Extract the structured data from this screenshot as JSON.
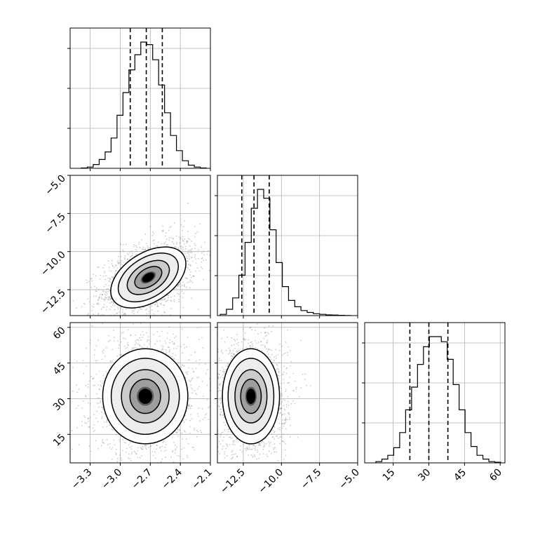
{
  "chart_data": {
    "type": "corner",
    "description_free": true,
    "grid": true,
    "variables": [
      {
        "range": [
          -3.5,
          -2.1
        ],
        "ticks": [
          -3.3,
          -3.0,
          -2.7,
          -2.4,
          -2.1
        ],
        "tick_labels": [
          "−3.3",
          "−3.0",
          "−2.7",
          "−2.4",
          "−2.1"
        ],
        "quantiles": [
          -2.9,
          -2.74,
          -2.58
        ],
        "hist": [
          0.3,
          1,
          3,
          7,
          13,
          24,
          42,
          60,
          78,
          90,
          100,
          98,
          86,
          66,
          44,
          26,
          14,
          6,
          2.5,
          1,
          0.3
        ]
      },
      {
        "range": [
          -14.2,
          -5.0
        ],
        "ticks": [
          -12.5,
          -10.0,
          -7.5,
          -5.0
        ],
        "tick_labels": [
          "−12.5",
          "−10.0",
          "−7.5",
          "−5.0"
        ],
        "quantiles": [
          -12.6,
          -11.8,
          -10.8
        ],
        "hist": [
          1,
          5,
          14,
          32,
          58,
          85,
          100,
          93,
          68,
          42,
          23,
          12,
          7,
          4,
          2.5,
          1.5,
          1,
          0.6,
          0.4,
          0.2,
          0.1
        ]
      },
      {
        "range": [
          3,
          62
        ],
        "ticks": [
          15,
          30,
          45,
          60
        ],
        "tick_labels": [
          "15",
          "30",
          "45",
          "60"
        ],
        "quantiles": [
          22,
          30,
          38
        ],
        "hist": [
          1,
          3,
          6,
          12,
          24,
          42,
          60,
          78,
          92,
          100,
          100,
          96,
          82,
          62,
          42,
          24,
          13,
          6,
          3,
          1,
          0.5
        ]
      }
    ],
    "pairs": [
      {
        "x_var": 0,
        "y_var": 1,
        "center": [
          -2.72,
          -11.7
        ],
        "sd": [
          0.15,
          0.8
        ],
        "rho": 0.45,
        "n": 1800
      },
      {
        "x_var": 0,
        "y_var": 2,
        "center": [
          -2.75,
          31
        ],
        "sd": [
          0.17,
          8
        ],
        "rho": 0.0,
        "n": 1800
      },
      {
        "x_var": 1,
        "y_var": 2,
        "center": [
          -12.0,
          31
        ],
        "sd": [
          0.75,
          8
        ],
        "rho": 0.0,
        "n": 1800
      }
    ]
  }
}
